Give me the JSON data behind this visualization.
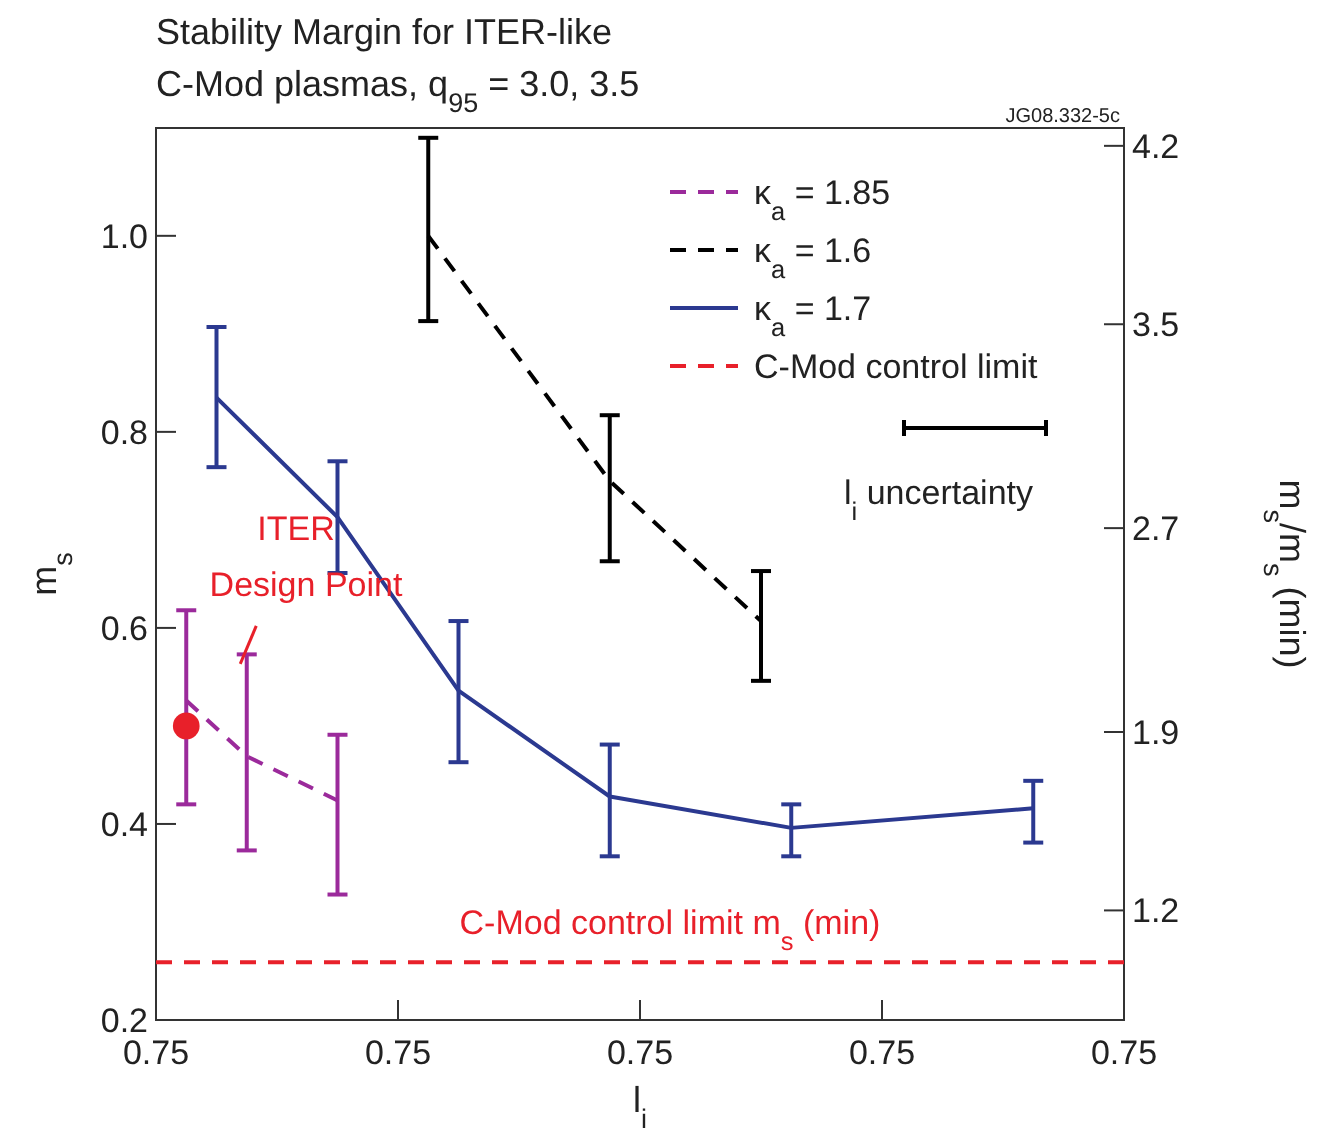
{
  "chart_data": {
    "type": "line",
    "title": "Stability Margin for ITER-like",
    "subtitle": "C-Mod plasmas, q$_{95}$ = 3.0, 3.5",
    "xlabel": "l$_{i}$",
    "ylabel": "m$_{s}$",
    "y2label": "m$_{s}$/m$_{s}$ (min)",
    "categories": [
      "0.75",
      null,
      null,
      null,
      null,
      null,
      null,
      null,
      "0.75",
      null,
      null,
      null,
      null,
      null,
      null,
      null,
      "0.75",
      null,
      null,
      null,
      null,
      null,
      null,
      null,
      "0.75",
      null,
      null,
      null,
      null,
      null,
      null,
      null,
      "0.75"
    ],
    "ylim": [
      0.2,
      1.11
    ],
    "yticks": [
      {
        "value": 0.2,
        "label": "0.2"
      },
      {
        "value": 0.4,
        "label": "0.4"
      },
      {
        "value": 0.6,
        "label": "0.6"
      },
      {
        "value": 0.8,
        "label": "0.8"
      },
      {
        "value": 1.0,
        "label": "1.0"
      }
    ],
    "y2lim": [
      0.77,
      4.27
    ],
    "y2ticks": [
      1.2,
      1.9,
      2.7,
      3.5,
      4.2
    ],
    "legend": "top right",
    "marker": "none",
    "series": [
      {
        "name": "κ$_{a}$ = 1.85",
        "color": "#9b2a9b",
        "line_style": "dashed",
        "values": [
          null,
          0.526,
          null,
          0.469,
          null,
          null,
          0.424,
          null,
          null,
          null,
          null,
          null,
          null,
          null,
          null,
          null,
          null,
          null,
          null,
          null,
          null,
          null,
          null,
          null,
          null,
          null,
          null,
          null,
          null,
          null,
          null,
          null,
          null
        ],
        "errors": [
          null,
          [
            0.42,
            0.618
          ],
          null,
          [
            0.373,
            0.573
          ],
          null,
          null,
          [
            0.328,
            0.491
          ],
          null,
          null,
          null,
          null,
          null,
          null,
          null,
          null,
          null,
          null,
          null,
          null,
          null,
          null,
          null,
          null,
          null,
          null,
          null,
          null,
          null,
          null,
          null,
          null,
          null,
          null
        ]
      },
      {
        "name": "κ$_{a}$ = 1.6",
        "color": "#000000",
        "line_style": "dashed",
        "values": [
          null,
          null,
          null,
          null,
          null,
          null,
          null,
          null,
          null,
          1.0,
          null,
          null,
          null,
          null,
          null,
          0.75,
          null,
          null,
          null,
          null,
          0.607,
          null,
          null,
          null,
          null,
          null,
          null,
          null,
          null,
          null,
          null,
          null,
          null
        ],
        "errors": [
          null,
          null,
          null,
          null,
          null,
          null,
          null,
          null,
          null,
          [
            0.913,
            1.1
          ],
          null,
          null,
          null,
          null,
          null,
          [
            0.668,
            0.817
          ],
          null,
          null,
          null,
          null,
          [
            0.546,
            0.658
          ],
          null,
          null,
          null,
          null,
          null,
          null,
          null,
          null,
          null,
          null,
          null,
          null
        ]
      },
      {
        "name": "κ$_{a}$ = 1.7",
        "color": "#2b3990",
        "line_style": "solid",
        "values": [
          null,
          null,
          0.835,
          null,
          null,
          null,
          0.713,
          null,
          null,
          null,
          0.536,
          null,
          null,
          null,
          null,
          0.428,
          null,
          null,
          null,
          null,
          null,
          0.396,
          null,
          null,
          null,
          null,
          null,
          null,
          null,
          0.416,
          null,
          null,
          null
        ],
        "errors": [
          null,
          null,
          [
            0.764,
            0.907
          ],
          null,
          null,
          null,
          [
            0.656,
            0.77
          ],
          null,
          null,
          null,
          [
            0.463,
            0.607
          ],
          null,
          null,
          null,
          null,
          [
            0.367,
            0.481
          ],
          null,
          null,
          null,
          null,
          null,
          [
            0.367,
            0.42
          ],
          null,
          null,
          null,
          null,
          null,
          null,
          null,
          [
            0.381,
            0.444
          ],
          null,
          null,
          null
        ]
      },
      {
        "type": "scatter",
        "color": "#e8202a",
        "marker": "circle",
        "values": [
          null,
          0.5,
          null,
          null,
          null,
          null,
          null,
          null,
          null,
          null,
          null,
          null,
          null,
          null,
          null,
          null,
          null,
          null,
          null,
          null,
          null,
          null,
          null,
          null,
          null,
          null,
          null,
          null,
          null,
          null,
          null,
          null,
          null
        ]
      }
    ],
    "ref_lines": [
      {
        "axis": "y",
        "value": 0.259,
        "label": "C-Mod control limit",
        "color": "#e8202a",
        "line_style": "dashed"
      }
    ],
    "annotations": [
      "JG08.332-5c",
      "ITER Design Point",
      "C-Mod control limit m$_{s}$ (min)",
      "l$_{i}$ uncertainty"
    ]
  }
}
